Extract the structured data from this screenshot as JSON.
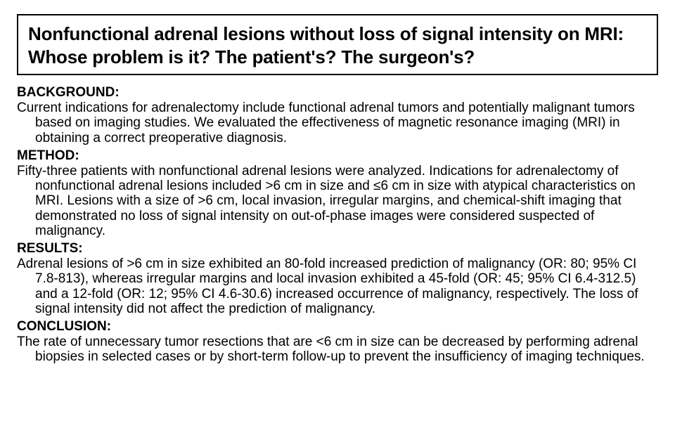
{
  "title": "Nonfunctional adrenal lesions without loss of signal intensity on MRI: Whose problem is it? The patient's? The surgeon's?",
  "sections": {
    "background": {
      "header": "BACKGROUND:",
      "text": "Current indications for adrenalectomy include functional adrenal tumors and potentially malignant tumors based on imaging studies. We evaluated the effectiveness of magnetic resonance imaging (MRI) in obtaining a correct preoperative diagnosis."
    },
    "method": {
      "header": "METHOD:",
      "text": "Fifty-three patients with nonfunctional adrenal lesions were analyzed. Indications for adrenalectomy of nonfunctional adrenal lesions included >6 cm in size and ≤6 cm in size with atypical characteristics on MRI. Lesions with a size of >6 cm, local invasion, irregular margins, and chemical-shift imaging that demonstrated no loss of signal intensity on out-of-phase images were considered suspected of malignancy."
    },
    "results": {
      "header": "RESULTS:",
      "text": "Adrenal lesions of >6 cm in size exhibited an 80-fold increased prediction of malignancy (OR: 80; 95% CI 7.8-813), whereas irregular margins and local invasion exhibited a 45-fold (OR: 45; 95% CI 6.4-312.5) and a 12-fold (OR: 12; 95% CI 4.6-30.6) increased occurrence of malignancy, respectively. The loss of signal intensity did not affect the prediction of malignancy."
    },
    "conclusion": {
      "header": "CONCLUSION:",
      "text": "The rate of unnecessary tumor resections that are <6 cm in size can be decreased by performing adrenal biopsies in selected cases or by short-term follow-up to prevent the insufficiency of imaging techniques."
    }
  },
  "colors": {
    "text": "#000000",
    "background": "#ffffff",
    "border": "#000000"
  },
  "typography": {
    "title_fontsize": 26,
    "title_fontweight": 600,
    "header_fontsize": 19,
    "header_fontweight": "bold",
    "body_fontsize": 19,
    "font_family": "Arial"
  }
}
